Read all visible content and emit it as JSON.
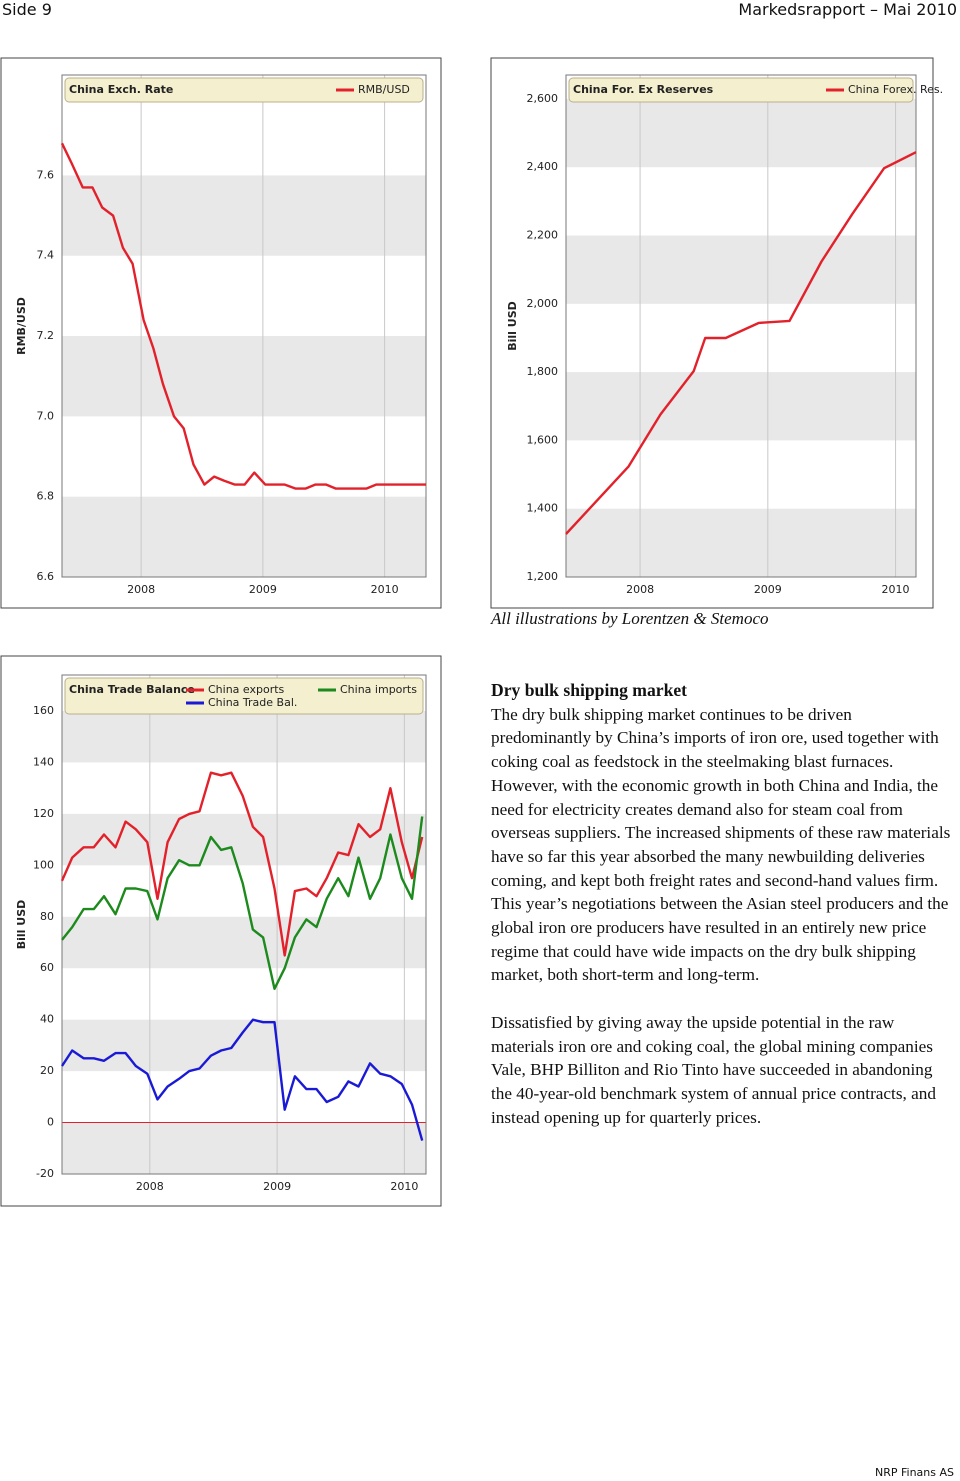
{
  "header": {
    "page": "Side 9",
    "report": "Markedsrapport – Mai 2010"
  },
  "chart_data": [
    {
      "type": "line",
      "title": "China Exch. Rate",
      "y_label": "RMB/USD",
      "x": [
        2007.35,
        2007.43,
        2007.52,
        2007.6,
        2007.68,
        2007.77,
        2007.85,
        2007.93,
        2008.02,
        2008.1,
        2008.18,
        2008.27,
        2008.35,
        2008.43,
        2008.52,
        2008.6,
        2008.68,
        2008.77,
        2008.85,
        2008.93,
        2009.02,
        2009.1,
        2009.18,
        2009.27,
        2009.35,
        2009.43,
        2009.52,
        2009.6,
        2009.68,
        2009.77,
        2009.85,
        2009.93,
        2010.02,
        2010.34
      ],
      "series": [
        {
          "name": "RMB/USD",
          "color": "#e3212b",
          "values": [
            7.68,
            7.63,
            7.57,
            7.57,
            7.52,
            7.5,
            7.42,
            7.38,
            7.24,
            7.17,
            7.08,
            7.0,
            6.97,
            6.88,
            6.83,
            6.85,
            6.84,
            6.83,
            6.83,
            6.86,
            6.83,
            6.83,
            6.83,
            6.82,
            6.82,
            6.83,
            6.83,
            6.82,
            6.82,
            6.82,
            6.82,
            6.83,
            6.83,
            6.83
          ]
        }
      ],
      "xlim": [
        2007.35,
        2010.34
      ],
      "xticks": [
        2008,
        2009,
        2010
      ],
      "ylim": [
        6.6,
        7.85
      ],
      "yticks": [
        6.6,
        6.8,
        {
          "value": 7,
          "label": "7.0"
        },
        7.2,
        7.4,
        7.6
      ],
      "grid": true
    },
    {
      "type": "line",
      "title": "China For. Ex Reserves",
      "y_label": "Bill USD",
      "x": [
        2007.42,
        2007.91,
        2008.16,
        2008.42,
        2008.51,
        2008.67,
        2008.93,
        2009.17,
        2009.42,
        2009.66,
        2009.91,
        2010.16
      ],
      "series": [
        {
          "name": "China Forex. Res.",
          "color": "#e3212b",
          "values": [
            1326,
            1524,
            1676,
            1803,
            1900,
            1900,
            1944,
            1950,
            2124,
            2262,
            2397,
            2444
          ]
        }
      ],
      "xlim": [
        2007.42,
        2010.16
      ],
      "xticks": [
        2008,
        2009,
        2010
      ],
      "ylim": [
        1200,
        2670
      ],
      "yticks": [
        {
          "value": 1200,
          "label": "1,200"
        },
        {
          "value": 1400,
          "label": "1,400"
        },
        {
          "value": 1600,
          "label": "1,600"
        },
        {
          "value": 1800,
          "label": "1,800"
        },
        {
          "value": 2000,
          "label": "2,000"
        },
        {
          "value": 2200,
          "label": "2,200"
        },
        {
          "value": 2400,
          "label": "2,400"
        },
        {
          "value": 2600,
          "label": "2,600"
        }
      ],
      "grid": true
    },
    {
      "type": "line",
      "title": "China Trade Balance",
      "y_label": "Bill USD",
      "x": [
        2007.31,
        2007.39,
        2007.48,
        2007.56,
        2007.64,
        2007.73,
        2007.81,
        2007.89,
        2007.98,
        2008.06,
        2008.14,
        2008.23,
        2008.31,
        2008.39,
        2008.48,
        2008.56,
        2008.64,
        2008.73,
        2008.81,
        2008.89,
        2008.98,
        2009.06,
        2009.14,
        2009.23,
        2009.31,
        2009.39,
        2009.48,
        2009.56,
        2009.64,
        2009.73,
        2009.81,
        2009.89,
        2009.98,
        2010.06,
        2010.14
      ],
      "series": [
        {
          "name": "China exports",
          "color": "#e3212b",
          "values": [
            94,
            103,
            107,
            107,
            112,
            107,
            117,
            114,
            109,
            87,
            109,
            118,
            120,
            121,
            136,
            135,
            136,
            127,
            115,
            111,
            91,
            65,
            90,
            91,
            88,
            95,
            105,
            104,
            116,
            111,
            114,
            130,
            109,
            95,
            111
          ]
        },
        {
          "name": "China imports",
          "color": "#1d8a1d",
          "values": [
            71,
            76,
            83,
            83,
            88,
            81,
            91,
            91,
            90,
            79,
            95,
            102,
            100,
            100,
            111,
            106,
            107,
            93,
            75,
            72,
            52,
            60,
            72,
            79,
            76,
            87,
            95,
            88,
            103,
            87,
            95,
            112,
            95,
            87,
            119
          ]
        },
        {
          "name": "China Trade Bal.",
          "color": "#1a1ad6",
          "values": [
            22,
            28,
            25,
            25,
            24,
            27,
            27,
            22,
            19,
            9,
            14,
            17,
            20,
            21,
            26,
            28,
            29,
            35,
            40,
            39,
            39,
            5,
            18,
            13,
            13,
            8,
            10,
            16,
            14,
            23,
            19,
            18,
            15,
            7,
            -7
          ]
        }
      ],
      "xlim": [
        2007.31,
        2010.17
      ],
      "xticks": [
        2008,
        2009,
        2010
      ],
      "ylim": [
        -20,
        174
      ],
      "yticks": [
        -20,
        0,
        20,
        40,
        60,
        80,
        100,
        120,
        140,
        160
      ],
      "grid": true
    }
  ],
  "caption": "All illustrations by Lorentzen & Stemoco",
  "article": {
    "title": "Dry bulk shipping market",
    "paragraphs": [
      "The dry bulk shipping market continues to be driven predominantly by China’s imports of iron ore, used together with coking coal as feedstock in the steelmaking blast furnaces. However, with the economic growth in both China and India, the need for electricity creates demand also for steam coal from overseas suppliers. The increased shipments of these raw materials have so far this year absorbed the many newbuilding deliveries coming, and kept both freight rates and second-hand values firm.",
      "This year’s negotiations between the Asian steel producers and the global iron ore producers have resulted in an entirely new price regime that could have wide impacts on the dry bulk shipping market, both short-term and long-term.",
      "Dissatisfied by giving away the upside potential in the raw materials iron ore and coking coal, the global mining companies Vale, BHP Billiton and Rio Tinto have succeeded in abandoning the 40-year-old benchmark system of annual price contracts, and instead opening up for quarterly prices."
    ]
  },
  "footer": "NRP Finans AS"
}
